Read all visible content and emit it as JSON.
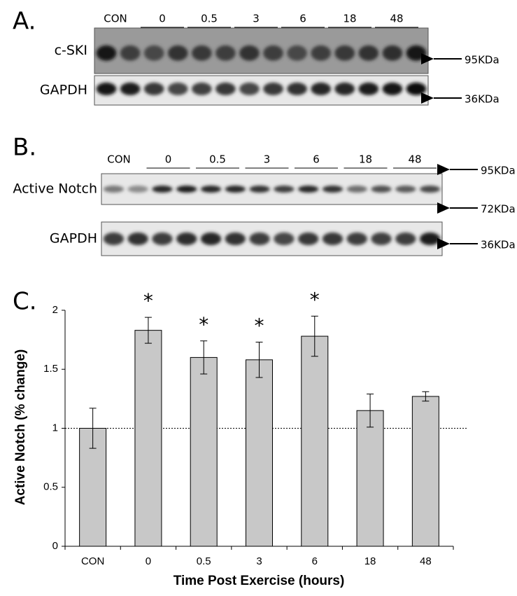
{
  "panels": {
    "a": "A.",
    "b": "B.",
    "c": "C."
  },
  "blot_a": {
    "lanes": [
      "CON",
      "0",
      "0.5",
      "3",
      "6",
      "18",
      "48"
    ],
    "rows": [
      {
        "label": "c-SKI",
        "marker": "95KDa"
      },
      {
        "label": "GAPDH",
        "marker": "36KDa"
      }
    ]
  },
  "blot_b": {
    "lanes": [
      "CON",
      "0",
      "0.5",
      "3",
      "6",
      "18",
      "48"
    ],
    "rows": [
      {
        "label": "Active Notch"
      },
      {
        "label": "GAPDH"
      }
    ],
    "markers": [
      "95KDa",
      "72KDa",
      "36KDa"
    ]
  },
  "chart_data": {
    "type": "bar",
    "categories": [
      "CON",
      "0",
      "0.5",
      "3",
      "6",
      "18",
      "48"
    ],
    "values": [
      1,
      1.83,
      1.6,
      1.58,
      1.78,
      1.15,
      1.27
    ],
    "errors": [
      0.17,
      0.11,
      0.14,
      0.15,
      0.17,
      0.14,
      0.04
    ],
    "significance": [
      null,
      "*",
      "*",
      "*",
      "*",
      null,
      null
    ],
    "color": "#c8c8c8",
    "reference_line": 1,
    "xlabel": "Time Post Exercise (hours)",
    "ylabel": "Active Notch (% change)",
    "ylim": [
      0,
      2
    ],
    "yticks": [
      0,
      0.5,
      1,
      1.5,
      2
    ]
  }
}
